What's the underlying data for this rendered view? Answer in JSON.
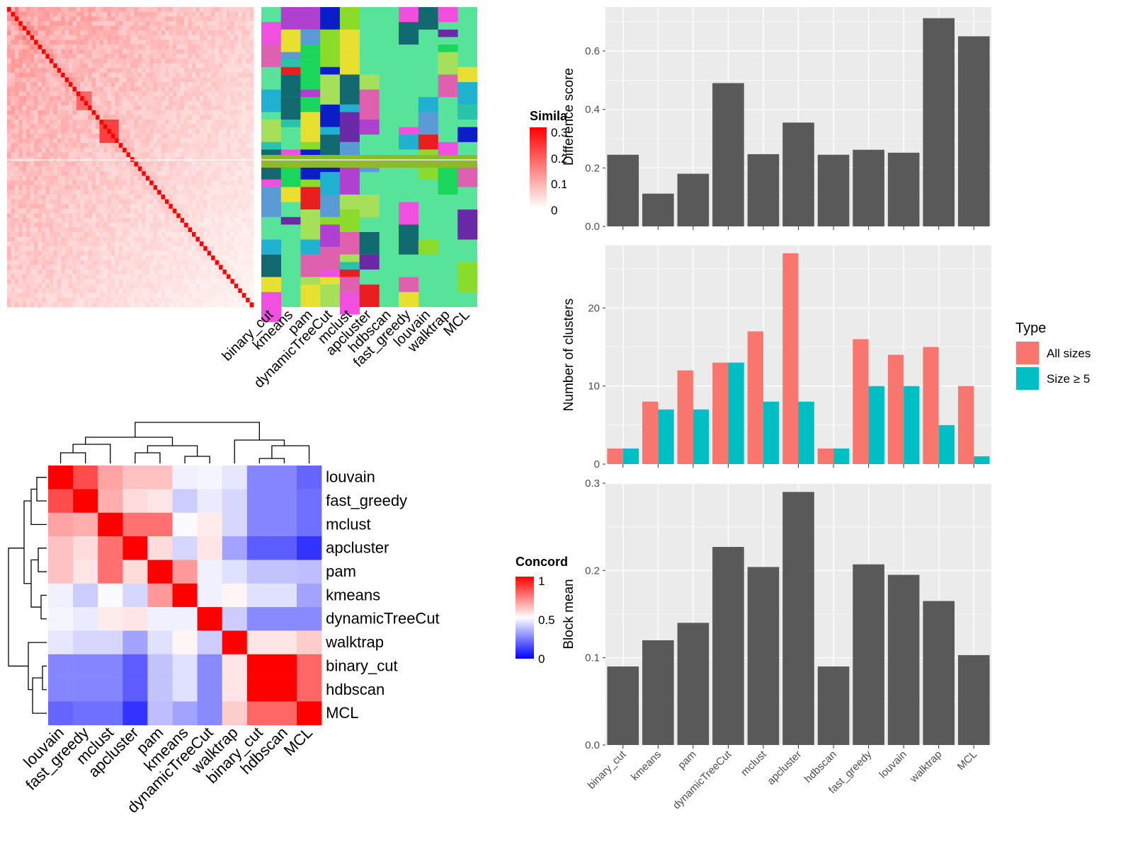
{
  "colors": {
    "panel_bg": "#EBEBEB",
    "grid": "#FFFFFF",
    "bar_dark": "#595959",
    "all_sizes": "#F8766D",
    "size5": "#00BFC4",
    "heat_high": "#FF0000",
    "heat_mid": "#FFFFFF",
    "heat_low": "#0000FF",
    "cluster_base": "#57E49A"
  },
  "similarity_legend": {
    "title": "Simila",
    "ticks": [
      "0.3",
      "0.2",
      "0.1",
      "0"
    ]
  },
  "concordance_legend": {
    "title": "Concord",
    "ticks": [
      "1",
      "0.5",
      "0"
    ]
  },
  "cluster_heatmap": {
    "labels": [
      "binary_cut",
      "kmeans",
      "pam",
      "dynamicTreeCut",
      "mclust",
      "apcluster",
      "hdbscan",
      "fast_greedy",
      "louvain",
      "walktrap",
      "MCL"
    ]
  },
  "chart_data": [
    {
      "type": "heatmap",
      "title": "",
      "legend_title": "Simila",
      "legend_ticks": [
        0,
        0.1,
        0.2,
        0.3
      ],
      "value_range": [
        0,
        0.3
      ],
      "description_values": "term similarity matrix; diagonal = 0.3"
    },
    {
      "type": "heatmap",
      "title": "",
      "legend_title": "Concord",
      "legend_ticks": [
        0,
        0.5,
        1
      ],
      "rows": [
        "louvain",
        "fast_greedy",
        "mclust",
        "apcluster",
        "pam",
        "kmeans",
        "dynamicTreeCut",
        "walktrap",
        "binary_cut",
        "hdbscan",
        "MCL"
      ],
      "columns": [
        "louvain",
        "fast_greedy",
        "mclust",
        "apcluster",
        "pam",
        "kmeans",
        "dynamicTreeCut",
        "walktrap",
        "binary_cut",
        "hdbscan",
        "MCL"
      ],
      "values": [
        [
          1.0,
          0.85,
          0.68,
          0.62,
          0.62,
          0.47,
          0.48,
          0.45,
          0.26,
          0.26,
          0.2
        ],
        [
          0.85,
          1.0,
          0.66,
          0.57,
          0.55,
          0.4,
          0.46,
          0.42,
          0.26,
          0.26,
          0.22
        ],
        [
          0.68,
          0.66,
          1.0,
          0.78,
          0.78,
          0.49,
          0.54,
          0.42,
          0.26,
          0.26,
          0.22
        ],
        [
          0.62,
          0.57,
          0.78,
          1.0,
          0.57,
          0.42,
          0.55,
          0.32,
          0.18,
          0.18,
          0.1
        ],
        [
          0.62,
          0.55,
          0.78,
          0.57,
          1.0,
          0.7,
          0.47,
          0.44,
          0.38,
          0.38,
          0.37
        ],
        [
          0.47,
          0.4,
          0.49,
          0.42,
          0.7,
          1.0,
          0.47,
          0.52,
          0.44,
          0.44,
          0.32
        ],
        [
          0.48,
          0.46,
          0.54,
          0.55,
          0.47,
          0.47,
          1.0,
          0.4,
          0.27,
          0.27,
          0.27
        ],
        [
          0.45,
          0.42,
          0.42,
          0.32,
          0.44,
          0.52,
          0.4,
          1.0,
          0.55,
          0.55,
          0.6
        ],
        [
          0.26,
          0.26,
          0.26,
          0.18,
          0.38,
          0.44,
          0.27,
          0.55,
          1.0,
          1.0,
          0.8
        ],
        [
          0.26,
          0.26,
          0.26,
          0.18,
          0.38,
          0.44,
          0.27,
          0.55,
          1.0,
          1.0,
          0.8
        ],
        [
          0.2,
          0.22,
          0.22,
          0.1,
          0.37,
          0.32,
          0.27,
          0.6,
          0.8,
          0.8,
          1.0
        ]
      ]
    },
    {
      "type": "bar",
      "ylabel": "Difference score",
      "categories": [
        "binary_cut",
        "kmeans",
        "pam",
        "dynamicTreeCut",
        "mclust",
        "apcluster",
        "hdbscan",
        "fast_greedy",
        "louvain",
        "walktrap",
        "MCL"
      ],
      "values": [
        0.245,
        0.112,
        0.18,
        0.49,
        0.247,
        0.355,
        0.245,
        0.262,
        0.252,
        0.712,
        0.65
      ],
      "ylim": [
        0,
        0.75
      ],
      "yticks": [
        "0.0",
        "0.2",
        "0.4",
        "0.6"
      ]
    },
    {
      "type": "bar",
      "ylabel": "Number of clusters",
      "categories": [
        "binary_cut",
        "kmeans",
        "pam",
        "dynamicTreeCut",
        "mclust",
        "apcluster",
        "hdbscan",
        "fast_greedy",
        "louvain",
        "walktrap",
        "MCL"
      ],
      "series": [
        {
          "name": "All sizes",
          "values": [
            2,
            8,
            12,
            13,
            17,
            27,
            2,
            16,
            14,
            15,
            10
          ]
        },
        {
          "name": "Size ≥ 5",
          "values": [
            2,
            7,
            7,
            13,
            8,
            8,
            2,
            10,
            10,
            5,
            1
          ]
        }
      ],
      "ylim": [
        0,
        28
      ],
      "yticks": [
        "0",
        "10",
        "20"
      ],
      "legend_title": "Type",
      "legend_position": "right"
    },
    {
      "type": "bar",
      "ylabel": "Block mean",
      "categories": [
        "binary_cut",
        "kmeans",
        "pam",
        "dynamicTreeCut",
        "mclust",
        "apcluster",
        "hdbscan",
        "fast_greedy",
        "louvain",
        "walktrap",
        "MCL"
      ],
      "values": [
        0.09,
        0.12,
        0.14,
        0.227,
        0.204,
        0.29,
        0.09,
        0.207,
        0.195,
        0.165,
        0.103
      ],
      "ylim": [
        0,
        0.3
      ],
      "yticks": [
        "0.0",
        "0.1",
        "0.2",
        "0.3"
      ]
    }
  ]
}
